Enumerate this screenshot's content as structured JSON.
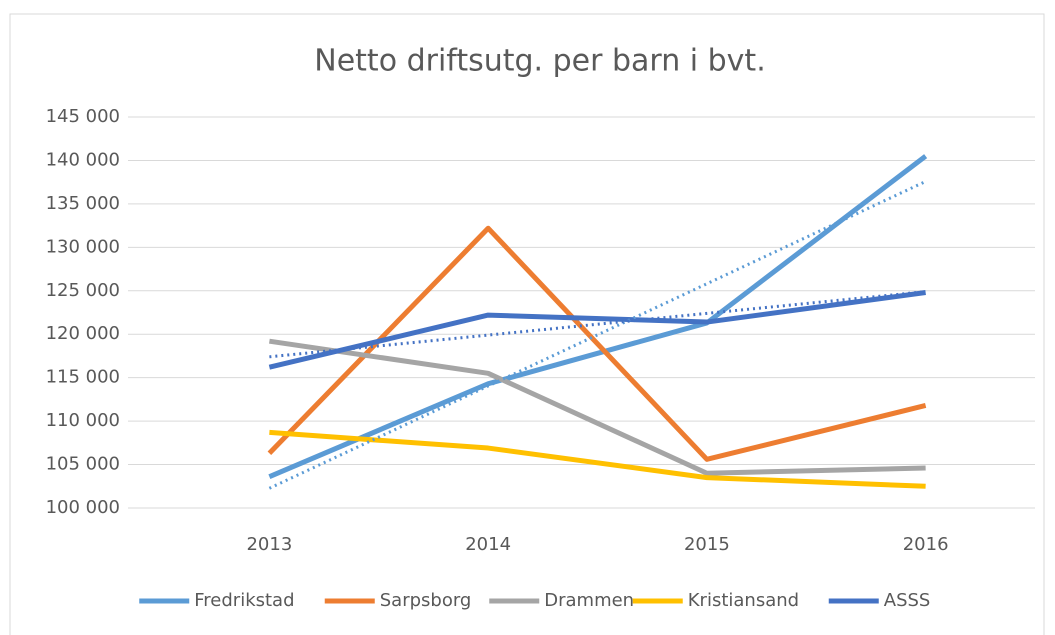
{
  "chart_data": {
    "type": "line",
    "title": "Netto driftsutg. per barn i bvt.",
    "categories": [
      "2013",
      "2014",
      "2015",
      "2016"
    ],
    "series": [
      {
        "name": "Fredrikstad",
        "color": "#5b9bd5",
        "values": [
          103600,
          114300,
          121300,
          140500
        ]
      },
      {
        "name": "Sarpsborg",
        "color": "#ed7d31",
        "values": [
          106300,
          132200,
          105600,
          111800
        ]
      },
      {
        "name": "Drammen",
        "color": "#a5a5a5",
        "values": [
          119200,
          115500,
          104000,
          104600
        ]
      },
      {
        "name": "Kristiansand",
        "color": "#ffc000",
        "values": [
          108700,
          106900,
          103500,
          102500
        ]
      },
      {
        "name": "ASSS",
        "color": "#4472c4",
        "values": [
          116200,
          122200,
          121400,
          124800
        ]
      }
    ],
    "trendlines": [
      0,
      4
    ],
    "ylim": [
      100000,
      145000
    ],
    "yticks": [
      {
        "value": 100000,
        "label": "100 000"
      },
      {
        "value": 105000,
        "label": "105 000"
      },
      {
        "value": 110000,
        "label": "110 000"
      },
      {
        "value": 115000,
        "label": "115 000"
      },
      {
        "value": 120000,
        "label": "120 000"
      },
      {
        "value": 125000,
        "label": "125 000"
      },
      {
        "value": 130000,
        "label": "130 000"
      },
      {
        "value": 135000,
        "label": "135 000"
      },
      {
        "value": 140000,
        "label": "140 000"
      },
      {
        "value": 145000,
        "label": "145 000"
      }
    ],
    "grid": true,
    "legend": "bottom"
  }
}
